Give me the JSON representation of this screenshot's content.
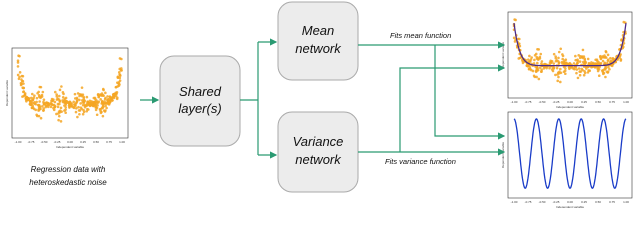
{
  "input_plot": {
    "caption_lines": [
      "Regression data with",
      "heteroskedastic noise"
    ],
    "x_label": "Independent variable",
    "y_label": "Dependent variable"
  },
  "shared": {
    "label_lines": [
      "Shared",
      "layer(s)"
    ]
  },
  "mean_network": {
    "label_lines": [
      "Mean",
      "network"
    ],
    "output_label": "Fits mean function"
  },
  "variance_network": {
    "label_lines": [
      "Variance",
      "network"
    ],
    "output_label": "Fits variance function"
  },
  "plots": {
    "x_ticks": [
      "-1.00",
      "-0.75",
      "-0.50",
      "-0.25",
      "0.00",
      "0.25",
      "0.50",
      "0.75",
      "1.00"
    ]
  }
}
